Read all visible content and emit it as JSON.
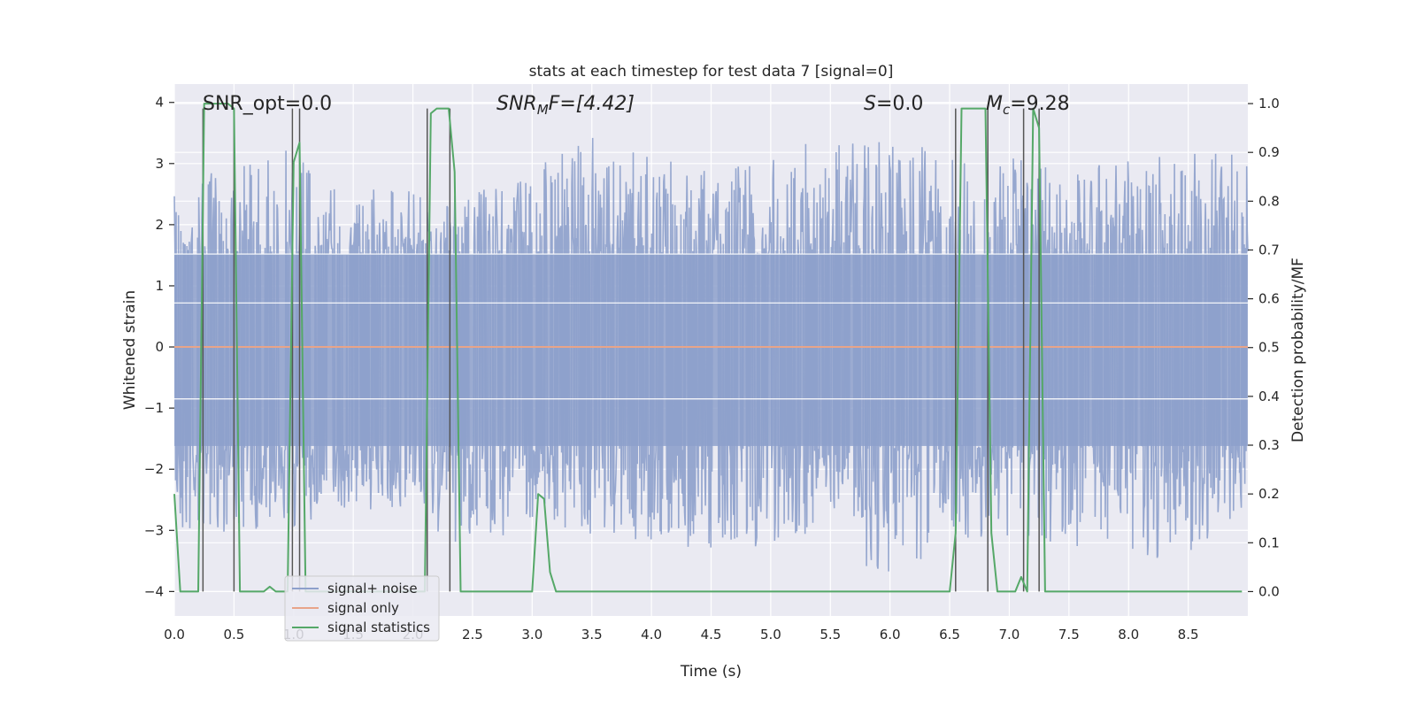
{
  "chart_data": {
    "type": "line",
    "title": "stats at each timestep for test data 7 [signal=0]",
    "xlabel": "Time (s)",
    "ylabel": "Whitened strain",
    "y2label": "Detection probability/MF",
    "xlim": [
      0,
      9.0
    ],
    "ylim": [
      -4.4,
      4.3
    ],
    "y2lim": [
      -0.05,
      1.04
    ],
    "xticks": [
      0.0,
      0.5,
      1.0,
      1.5,
      2.0,
      2.5,
      3.0,
      3.5,
      4.0,
      4.5,
      5.0,
      5.5,
      6.0,
      6.5,
      7.0,
      7.5,
      8.0,
      8.5
    ],
    "xtick_labels": [
      "0.0",
      "0.5",
      "1.0",
      "1.5",
      "2.0",
      "2.5",
      "3.0",
      "3.5",
      "4.0",
      "4.5",
      "5.0",
      "5.5",
      "6.0",
      "6.5",
      "7.0",
      "7.5",
      "8.0",
      "8.5"
    ],
    "yticks": [
      4,
      3,
      2,
      1,
      0,
      -1,
      -2,
      -3,
      -4
    ],
    "ytick_labels": [
      "4",
      "3",
      "2",
      "1",
      "0",
      "−1",
      "−2",
      "−3",
      "−4"
    ],
    "y2ticks": [
      1.0,
      0.9,
      0.8,
      0.7,
      0.6,
      0.5,
      0.4,
      0.3,
      0.2,
      0.1,
      0.0
    ],
    "y2tick_labels": [
      "1.0",
      "0.9",
      "0.8",
      "0.7",
      "0.6",
      "0.5",
      "0.4",
      "0.3",
      "0.2",
      "0.1",
      "0.0"
    ],
    "grid": true,
    "legend_position": "lower-left",
    "annotations": {
      "snr_opt": "SNR_opt=0.0",
      "snr_mf_sym": "SNR",
      "snr_mf_sub": "M",
      "snr_mf_rest": "F=[4.42]",
      "s_sym": "S",
      "s_rest": "=0.0",
      "mc_sym": "M",
      "mc_sub": "c",
      "mc_rest": "=9.28"
    },
    "noise_envelope": {
      "x": [
        0.0,
        0.5,
        1.0,
        1.5,
        2.0,
        2.5,
        3.0,
        3.5,
        4.0,
        4.5,
        5.0,
        5.5,
        6.0,
        6.5,
        7.0,
        7.5,
        8.0,
        8.5,
        9.0
      ],
      "upper": [
        2.6,
        3.1,
        3.4,
        2.6,
        2.6,
        2.5,
        3.0,
        3.5,
        3.2,
        3.0,
        3.4,
        3.3,
        3.4,
        3.2,
        3.1,
        3.0,
        3.1,
        3.2,
        3.2
      ],
      "lower": [
        -3.2,
        -3.0,
        -3.0,
        -2.6,
        -2.8,
        -3.5,
        -2.8,
        -3.1,
        -3.2,
        -3.4,
        -3.3,
        -3.0,
        -4.0,
        -3.2,
        -3.1,
        -3.3,
        -3.5,
        -3.4,
        -2.6
      ]
    },
    "vlines": [
      0.24,
      0.5,
      0.99,
      1.05,
      2.12,
      2.31,
      6.55,
      6.82,
      7.12,
      7.25
    ],
    "vline_range": [
      0.0,
      0.99
    ],
    "series": [
      {
        "name": "signal+ noise",
        "color": "#8da0cb",
        "axis": "left",
        "kind": "noise",
        "values": []
      },
      {
        "name": "signal only",
        "color": "#e8a489",
        "axis": "left",
        "x": [
          0.0,
          9.0
        ],
        "values": [
          0.0,
          0.0
        ]
      },
      {
        "name": "signal statistics",
        "color": "#55a868",
        "axis": "right",
        "x": [
          0.0,
          0.05,
          0.1,
          0.15,
          0.2,
          0.25,
          0.3,
          0.35,
          0.4,
          0.45,
          0.5,
          0.55,
          0.6,
          0.7,
          0.75,
          0.8,
          0.85,
          0.9,
          0.95,
          1.0,
          1.05,
          1.1,
          1.15,
          1.2,
          2.05,
          2.1,
          2.15,
          2.2,
          2.25,
          2.3,
          2.35,
          2.4,
          2.45,
          2.5,
          3.0,
          3.05,
          3.1,
          3.15,
          3.2,
          3.25,
          3.3,
          3.35,
          6.5,
          6.55,
          6.6,
          6.65,
          6.7,
          6.75,
          6.8,
          6.85,
          6.9,
          6.95,
          7.0,
          7.05,
          7.1,
          7.15,
          7.2,
          7.25,
          7.3,
          7.35,
          8.95
        ],
        "values": [
          0.2,
          0.0,
          0.0,
          0.0,
          0.0,
          1.0,
          1.0,
          1.0,
          1.0,
          1.0,
          0.99,
          0.0,
          0.0,
          0.0,
          0.0,
          0.01,
          0.0,
          0.0,
          0.0,
          0.88,
          0.92,
          0.0,
          0.0,
          0.0,
          0.0,
          0.0,
          0.98,
          0.99,
          0.99,
          0.99,
          0.86,
          0.0,
          0.0,
          0.0,
          0.0,
          0.2,
          0.19,
          0.04,
          0.0,
          0.0,
          0.0,
          0.0,
          0.0,
          0.12,
          0.99,
          0.99,
          0.99,
          0.99,
          0.99,
          0.12,
          0.0,
          0.0,
          0.0,
          0.0,
          0.03,
          0.0,
          0.99,
          0.95,
          0.0,
          0.0,
          0.0
        ]
      }
    ]
  }
}
